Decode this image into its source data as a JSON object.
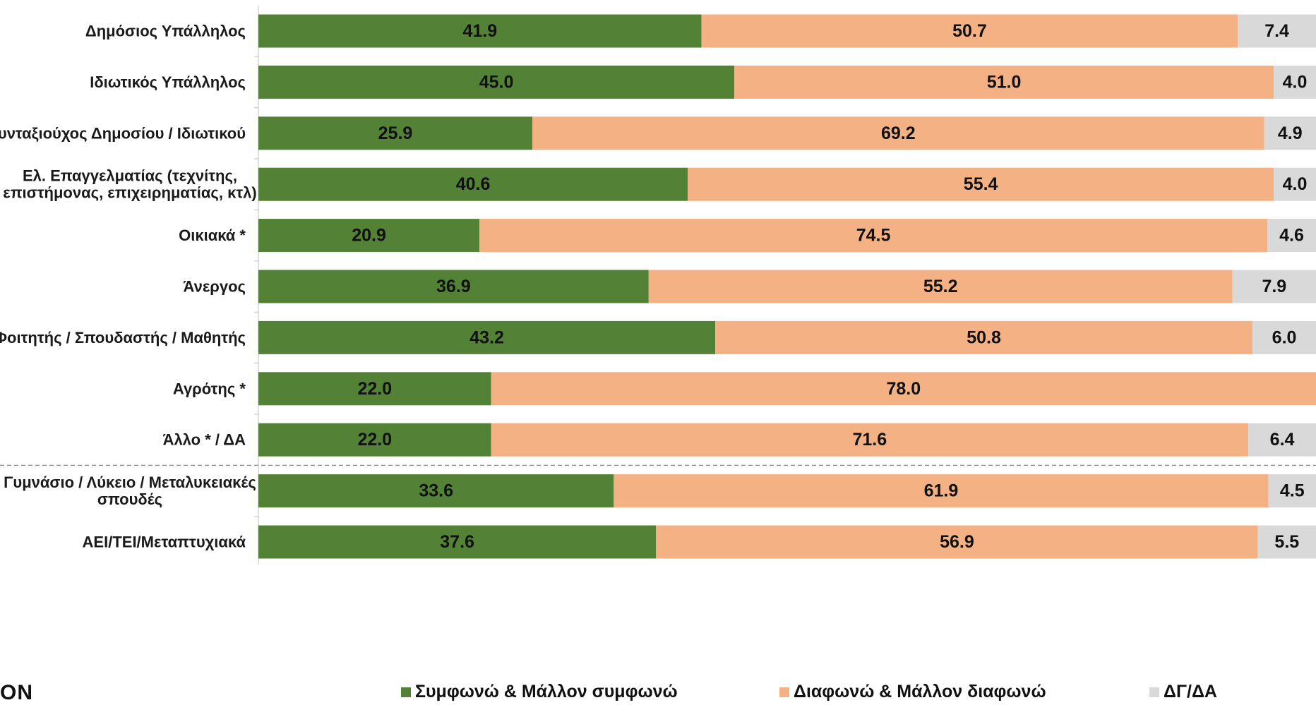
{
  "chart_data": {
    "type": "bar",
    "orientation": "horizontal",
    "stacked": true,
    "xlim": [
      0,
      100
    ],
    "categories": [
      "Δημόσιος Υπάλληλος",
      "Ιδιωτικός Υπάλληλος",
      "Συνταξιούχος Δημοσίου / Ιδιωτικού",
      "Ελ. Επαγγελματίας (τεχνίτης,\nεπιστήμονας, επιχειρηματίας, κτλ)",
      "Οικιακά *",
      "Άνεργος",
      "Φοιτητής / Σπουδαστής / Μαθητής",
      "Αγρότης *",
      "Άλλο *  / ΔΑ",
      "Γυμνάσιο / Λύκειο / Μεταλυκειακές\nσπουδές",
      "ΑΕΙ/ΤΕΙ/Μεταπτυχιακά"
    ],
    "series": [
      {
        "name": "Συμφωνώ & Μάλλον συμφωνώ",
        "color": "#538135",
        "values": [
          41.9,
          45.0,
          25.9,
          40.6,
          20.9,
          36.9,
          43.2,
          22.0,
          22.0,
          33.6,
          37.6
        ]
      },
      {
        "name": "Διαφωνώ & Μάλλον διαφωνώ",
        "color": "#F4B183",
        "values": [
          50.7,
          51.0,
          69.2,
          55.4,
          74.5,
          55.2,
          50.8,
          78.0,
          71.6,
          61.9,
          56.9
        ]
      },
      {
        "name": "ΔΓ/ΔΑ",
        "color": "#D9D9D9",
        "values": [
          7.4,
          4.0,
          4.9,
          4.0,
          4.6,
          7.9,
          6.0,
          0,
          6.4,
          4.5,
          5.5
        ]
      }
    ],
    "separator_after_index": 8,
    "legend_position": "bottom"
  },
  "logo_text": "ON"
}
